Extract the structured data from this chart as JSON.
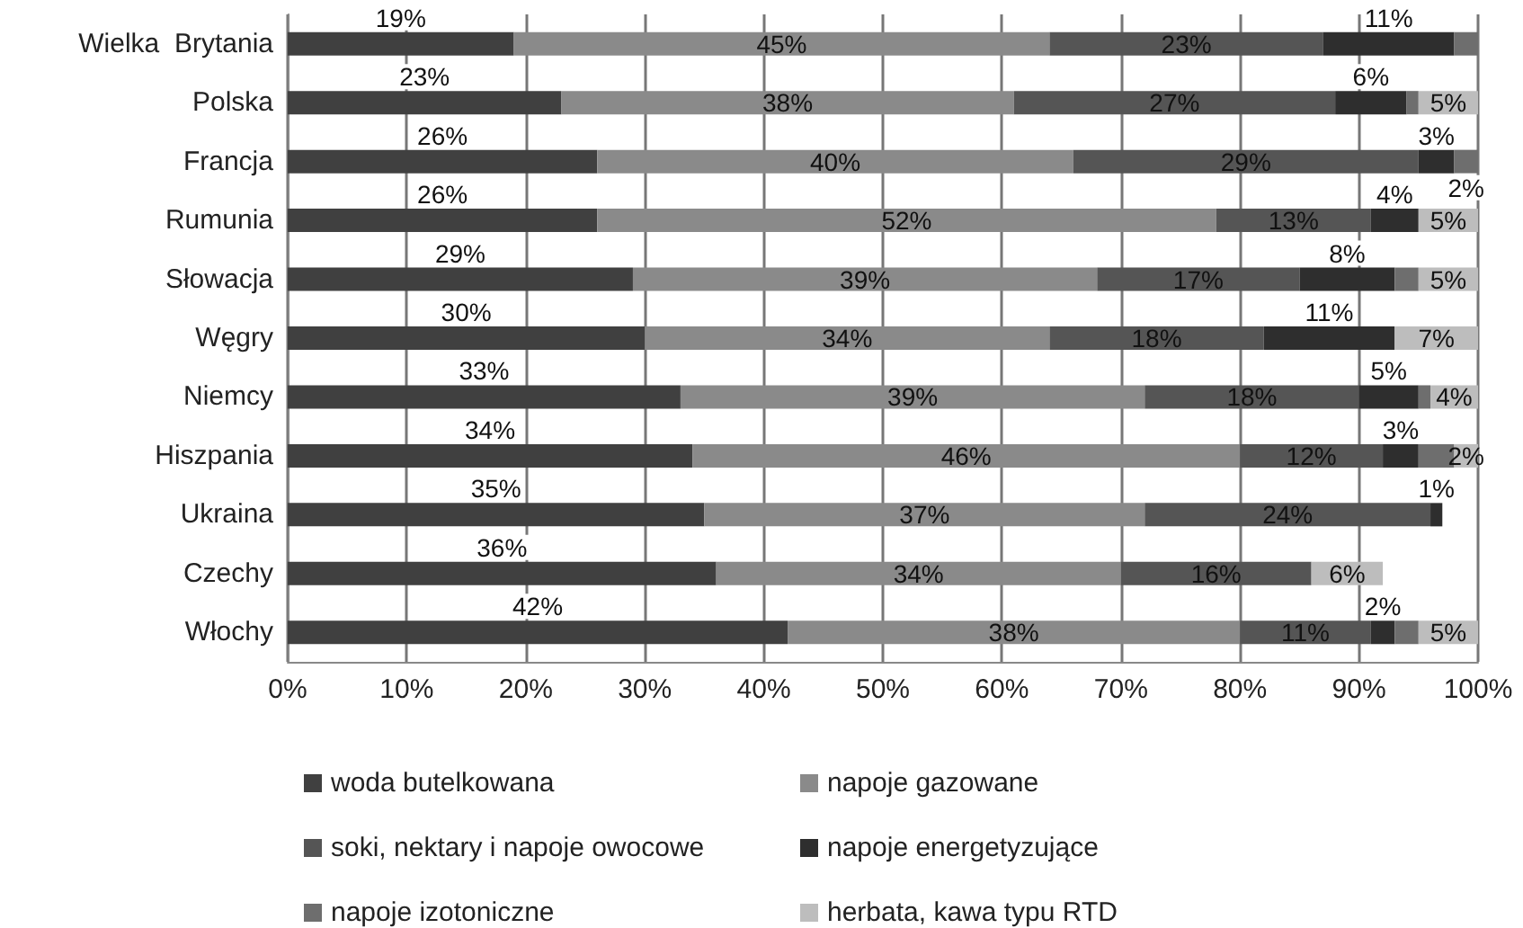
{
  "chart_data": {
    "type": "bar",
    "orientation": "horizontal",
    "stacked": true,
    "categories": [
      "Wielka  Brytania",
      "Polska",
      "Francja",
      "Rumunia",
      "Słowacja",
      "Węgry",
      "Niemcy",
      "Hiszpania",
      "Ukraina",
      "Czechy",
      "Włochy"
    ],
    "series": [
      {
        "name": "woda butelkowana",
        "color": "#404040",
        "values": [
          19,
          23,
          26,
          26,
          29,
          30,
          33,
          34,
          35,
          36,
          42
        ],
        "value_labels": [
          "19%",
          "23%",
          "26%",
          "26%",
          "29%",
          "30%",
          "33%",
          "34%",
          "35%",
          "36%",
          "42%"
        ]
      },
      {
        "name": "napoje gazowane",
        "color": "#8a8a8a",
        "values": [
          45,
          38,
          40,
          52,
          39,
          34,
          39,
          46,
          37,
          34,
          38
        ],
        "value_labels": [
          "45%",
          "38%",
          "40%",
          "52%",
          "39%",
          "34%",
          "39%",
          "46%",
          "37%",
          "34%",
          "38%"
        ]
      },
      {
        "name": "soki, nektary i napoje owocowe",
        "color": "#555555",
        "values": [
          23,
          27,
          29,
          13,
          17,
          18,
          18,
          12,
          24,
          16,
          11
        ],
        "value_labels": [
          "23%",
          "27%",
          "29%",
          "13%",
          "17%",
          "18%",
          "18%",
          "12%",
          "24%",
          "16%",
          "11%"
        ]
      },
      {
        "name": "napoje energetyzujące",
        "color": "#2e2e2e",
        "values": [
          11,
          6,
          3,
          4,
          8,
          11,
          5,
          3,
          1,
          null,
          2
        ],
        "value_labels": [
          "11%",
          "6%",
          "3%",
          "4%",
          "8%",
          "11%",
          "5%",
          "3%",
          "1%",
          null,
          "2%"
        ]
      },
      {
        "name": "napoje izotoniczne",
        "color": "#6e6e6e",
        "values": [
          2,
          1,
          2,
          null,
          2,
          null,
          1,
          3,
          null,
          null,
          2
        ],
        "value_labels": [
          null,
          null,
          "2%",
          null,
          null,
          null,
          null,
          null,
          null,
          null,
          null
        ]
      },
      {
        "name": "herbata, kawa typu RTD",
        "color": "#bdbdbd",
        "values": [
          null,
          5,
          null,
          5,
          5,
          7,
          4,
          2,
          null,
          6,
          5
        ],
        "value_labels": [
          null,
          "5%",
          null,
          "5%",
          "5%",
          "7%",
          "4%",
          "2%",
          null,
          "6%",
          "5%"
        ]
      }
    ],
    "xlim": [
      0,
      100
    ],
    "xticks": [
      {
        "value": 0,
        "label": "0%"
      },
      {
        "value": 10,
        "label": "10%"
      },
      {
        "value": 20,
        "label": "20%"
      },
      {
        "value": 30,
        "label": "30%"
      },
      {
        "value": 40,
        "label": "40%"
      },
      {
        "value": 50,
        "label": "50%"
      },
      {
        "value": 60,
        "label": "60%"
      },
      {
        "value": 70,
        "label": "70%"
      },
      {
        "value": 80,
        "label": "80%"
      },
      {
        "value": 90,
        "label": "90%"
      },
      {
        "value": 100,
        "label": "100%"
      }
    ],
    "grid": "x",
    "legend": "bottom"
  }
}
